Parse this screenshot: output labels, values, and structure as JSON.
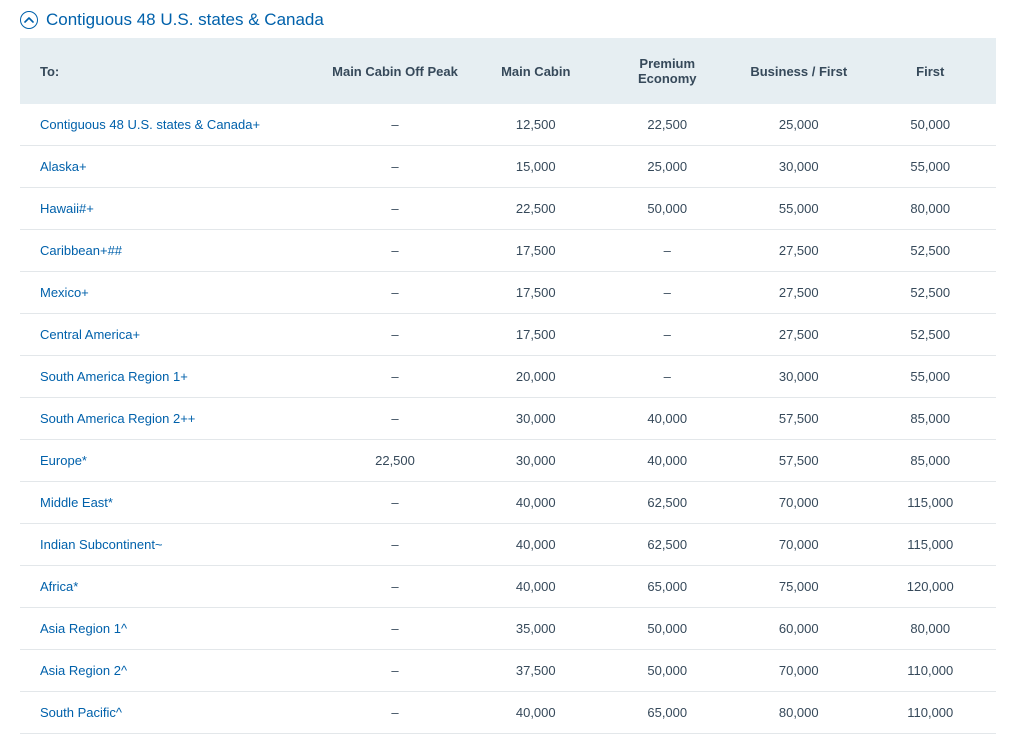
{
  "section": {
    "title": "Contiguous 48 U.S. states & Canada",
    "expanded": true,
    "accent_color": "#0061ab"
  },
  "table": {
    "header_bg": "#e6eef2",
    "text_color": "#36495a",
    "row_border": "#e3e7ea",
    "columns": [
      {
        "key": "to",
        "label": "To:"
      },
      {
        "key": "offpeak",
        "label": "Main Cabin Off Peak"
      },
      {
        "key": "main_cabin",
        "label": "Main Cabin"
      },
      {
        "key": "premium_economy",
        "label": "Premium Economy"
      },
      {
        "key": "business_first",
        "label": "Business / First"
      },
      {
        "key": "first",
        "label": "First"
      }
    ],
    "rows": [
      {
        "to": "Contiguous 48 U.S. states & Canada+",
        "offpeak": "–",
        "main_cabin": "12,500",
        "premium_economy": "22,500",
        "business_first": "25,000",
        "first": "50,000"
      },
      {
        "to": "Alaska+",
        "offpeak": "–",
        "main_cabin": "15,000",
        "premium_economy": "25,000",
        "business_first": "30,000",
        "first": "55,000"
      },
      {
        "to": "Hawaii#+",
        "offpeak": "–",
        "main_cabin": "22,500",
        "premium_economy": "50,000",
        "business_first": "55,000",
        "first": "80,000"
      },
      {
        "to": "Caribbean+##",
        "offpeak": "–",
        "main_cabin": "17,500",
        "premium_economy": "–",
        "business_first": "27,500",
        "first": "52,500"
      },
      {
        "to": "Mexico+",
        "offpeak": "–",
        "main_cabin": "17,500",
        "premium_economy": "–",
        "business_first": "27,500",
        "first": "52,500"
      },
      {
        "to": "Central America+",
        "offpeak": "–",
        "main_cabin": "17,500",
        "premium_economy": "–",
        "business_first": "27,500",
        "first": "52,500"
      },
      {
        "to": "South America Region 1+",
        "offpeak": "–",
        "main_cabin": "20,000",
        "premium_economy": "–",
        "business_first": "30,000",
        "first": "55,000"
      },
      {
        "to": "South America Region 2++",
        "offpeak": "–",
        "main_cabin": "30,000",
        "premium_economy": "40,000",
        "business_first": "57,500",
        "first": "85,000"
      },
      {
        "to": "Europe*",
        "offpeak": "22,500",
        "main_cabin": "30,000",
        "premium_economy": "40,000",
        "business_first": "57,500",
        "first": "85,000"
      },
      {
        "to": "Middle East*",
        "offpeak": "–",
        "main_cabin": "40,000",
        "premium_economy": "62,500",
        "business_first": "70,000",
        "first": "115,000"
      },
      {
        "to": "Indian Subcontinent~",
        "offpeak": "–",
        "main_cabin": "40,000",
        "premium_economy": "62,500",
        "business_first": "70,000",
        "first": "115,000"
      },
      {
        "to": "Africa*",
        "offpeak": "–",
        "main_cabin": "40,000",
        "premium_economy": "65,000",
        "business_first": "75,000",
        "first": "120,000"
      },
      {
        "to": "Asia Region 1^",
        "offpeak": "–",
        "main_cabin": "35,000",
        "premium_economy": "50,000",
        "business_first": "60,000",
        "first": "80,000"
      },
      {
        "to": "Asia Region 2^",
        "offpeak": "–",
        "main_cabin": "37,500",
        "premium_economy": "50,000",
        "business_first": "70,000",
        "first": "110,000"
      },
      {
        "to": "South Pacific^",
        "offpeak": "–",
        "main_cabin": "40,000",
        "premium_economy": "65,000",
        "business_first": "80,000",
        "first": "110,000"
      }
    ]
  }
}
